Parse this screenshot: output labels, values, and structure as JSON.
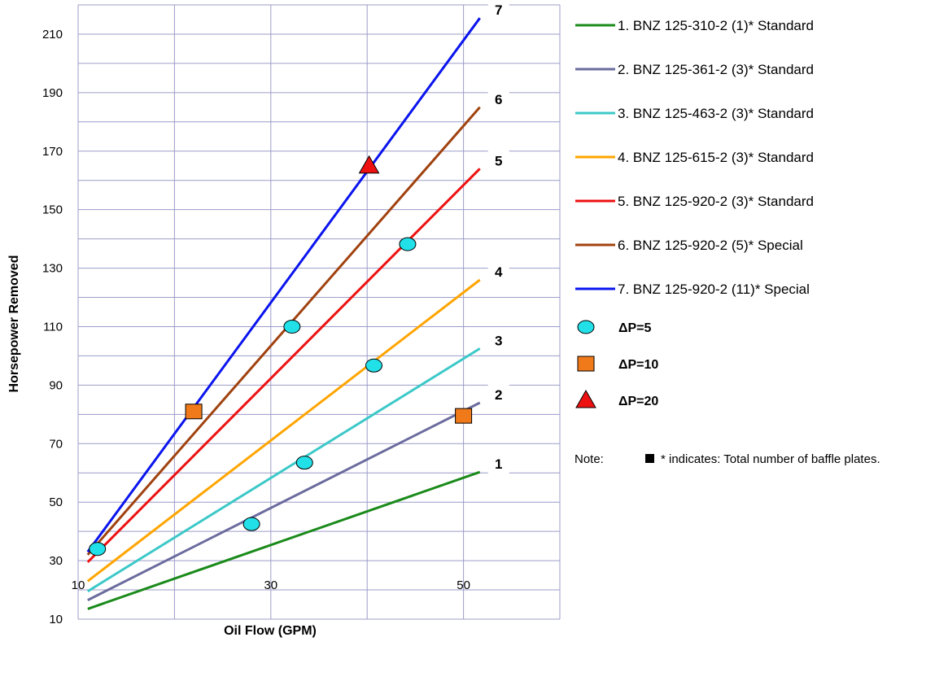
{
  "chart_data": {
    "type": "line",
    "xlabel": "Oil Flow (GPM)",
    "ylabel": "Horsepower Removed",
    "xlim": [
      10,
      60
    ],
    "ylim": [
      10,
      220
    ],
    "x_ticks": [
      10,
      30,
      50
    ],
    "y_ticks": [
      10,
      30,
      50,
      70,
      90,
      110,
      130,
      150,
      170,
      190,
      210
    ],
    "grid": true,
    "legend_position": "right",
    "series": [
      {
        "name": "1. BNZ 125-310-2 (1)* Standard",
        "label": "1",
        "color": "#1a8a1a",
        "points": [
          [
            11,
            13.5
          ],
          [
            51.7,
            60.3
          ]
        ]
      },
      {
        "name": "2.  BNZ 125-361-2 (3)* Standard",
        "label": "2",
        "color": "#6b6b9e",
        "points": [
          [
            11,
            16.5
          ],
          [
            51.7,
            84.0
          ]
        ]
      },
      {
        "name": "3.  BNZ 125-463-2 (3)* Standard",
        "label": "3",
        "color": "#3cc8c8",
        "points": [
          [
            11,
            19.5
          ],
          [
            51.7,
            102.5
          ]
        ]
      },
      {
        "name": "4.  BNZ 125-615-2 (3)* Standard",
        "label": "4",
        "color": "#ffa500",
        "points": [
          [
            11,
            23.0
          ],
          [
            51.7,
            126.0
          ]
        ]
      },
      {
        "name": "5.  BNZ 125-920-2 (3)* Standard",
        "label": "5",
        "color": "#ee1111",
        "points": [
          [
            11,
            29.5
          ],
          [
            51.7,
            164.0
          ]
        ]
      },
      {
        "name": "6.  BNZ 125-920-2 (5)* Special",
        "label": "6",
        "color": "#a0420f",
        "points": [
          [
            11,
            32.0
          ],
          [
            51.7,
            185.0
          ]
        ]
      },
      {
        "name": "7.  BNZ 125-920-2 (11)* Special",
        "label": "7",
        "color": "#0a14ee",
        "points": [
          [
            11,
            33.0
          ],
          [
            51.7,
            215.5
          ]
        ]
      }
    ],
    "markers": [
      {
        "name": "ΔP=5",
        "shape": "circle",
        "color": "#22e0e8",
        "points": [
          [
            12,
            34
          ],
          [
            28,
            42.5
          ],
          [
            33.5,
            63.5
          ],
          [
            32.2,
            110
          ],
          [
            40.7,
            96.7
          ],
          [
            44.2,
            138.2
          ]
        ]
      },
      {
        "name": "ΔP=10",
        "shape": "square",
        "color": "#f07a1a",
        "points": [
          [
            22,
            81
          ],
          [
            50,
            79.5
          ]
        ]
      },
      {
        "name": "ΔP=20",
        "shape": "triangle",
        "color": "#ee1111",
        "points": [
          [
            40.2,
            165
          ]
        ]
      }
    ],
    "note": {
      "label": "Note:",
      "text": "* indicates: Total number of baffle plates."
    }
  }
}
